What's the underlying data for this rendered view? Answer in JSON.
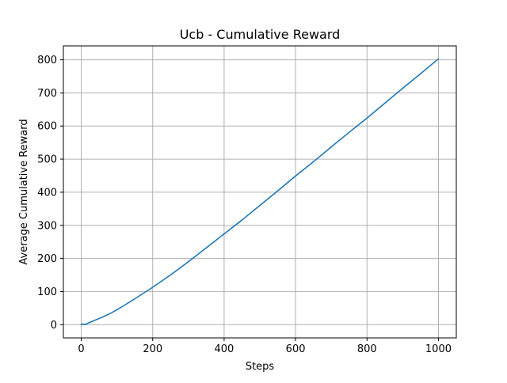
{
  "chart_data": {
    "type": "line",
    "title": "Ucb - Cumulative Reward",
    "xlabel": "Steps",
    "ylabel": "Average Cumulative Reward",
    "xlim": [
      -50,
      1050
    ],
    "ylim": [
      -40,
      842
    ],
    "xticks": [
      0,
      200,
      400,
      600,
      800,
      1000
    ],
    "yticks": [
      0,
      100,
      200,
      300,
      400,
      500,
      600,
      700,
      800
    ],
    "grid": true,
    "series": [
      {
        "color": "#1f77b4",
        "x": [
          0,
          5,
          10,
          20,
          40,
          60,
          80,
          100,
          120,
          150,
          200,
          250,
          300,
          350,
          400,
          450,
          500,
          550,
          600,
          650,
          700,
          750,
          800,
          850,
          900,
          950,
          1000
        ],
        "y": [
          0,
          2,
          0,
          5,
          14,
          23,
          33,
          45,
          58,
          78,
          113,
          150,
          190,
          232,
          274,
          316,
          360,
          404,
          449,
          492,
          537,
          581,
          624,
          669,
          714,
          758,
          803
        ]
      }
    ]
  }
}
